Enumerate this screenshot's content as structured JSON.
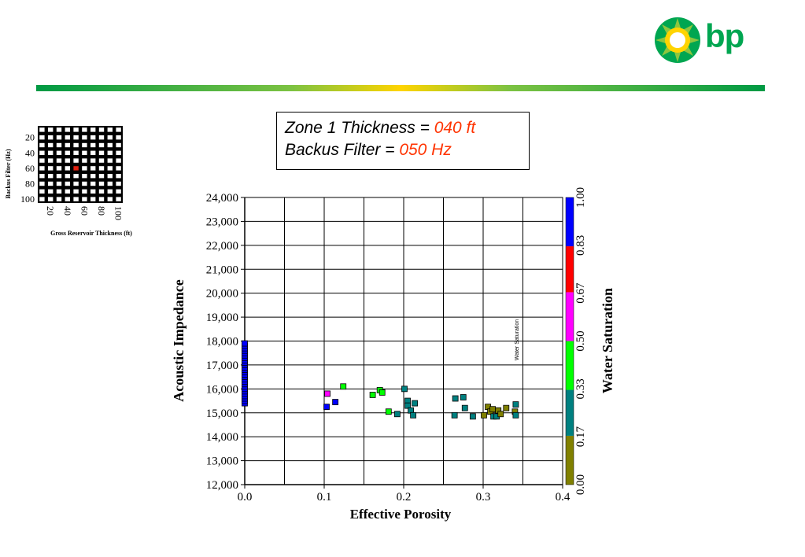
{
  "logo": {
    "text": "bp"
  },
  "colors": {
    "brand_green": "#00a651",
    "brand_yellow": "#ffd400",
    "highlight_red": "#ff3300"
  },
  "title_box": {
    "line1_prefix": "Zone 1 Thickness = ",
    "line1_value": "040 ft",
    "line2_prefix": "Backus Filter = ",
    "line2_value": "050 Hz"
  },
  "selector_grid": {
    "ylabel": "Backus Filter (Hz)",
    "xlabel": "Gross Reservoir Thickness (ft)",
    "row_labels": [
      "20",
      "40",
      "60",
      "80",
      "100"
    ],
    "col_labels": [
      "20",
      "40",
      "60",
      "80",
      "100"
    ],
    "rows": 10,
    "cols": 10,
    "selected": {
      "row": 5,
      "col": 4
    },
    "selected_color": "#e02010"
  },
  "chart_data": {
    "type": "scatter",
    "xlabel": "Effective Porosity",
    "ylabel": "Acoustic Impedance",
    "xlim": [
      0.0,
      0.4
    ],
    "ylim": [
      12000,
      24000
    ],
    "x_ticks": [
      "0.0",
      "0.1",
      "0.2",
      "0.3",
      "0.4"
    ],
    "x_tick_values": [
      0.0,
      0.1,
      0.2,
      0.3,
      0.4
    ],
    "y_ticks": [
      "12,000",
      "13,000",
      "14,000",
      "15,000",
      "16,000",
      "17,000",
      "18,000",
      "19,000",
      "20,000",
      "21,000",
      "22,000",
      "23,000",
      "24,000"
    ],
    "y_tick_values": [
      12000,
      13000,
      14000,
      15000,
      16000,
      17000,
      18000,
      19000,
      20000,
      21000,
      22000,
      23000,
      24000
    ],
    "x_gridlines": [
      0.05,
      0.1,
      0.15,
      0.2,
      0.25,
      0.3,
      0.35,
      0.4
    ],
    "y_gridlines": [
      13000,
      14000,
      15000,
      16000,
      17000,
      18000,
      19000,
      20000,
      21000,
      22000,
      23000,
      24000
    ],
    "annotation": "Water Saturation",
    "colorbar": {
      "label": "Water Saturation",
      "tick_labels": [
        "0.00",
        "0.17",
        "0.33",
        "0.50",
        "0.67",
        "0.83",
        "1.00"
      ],
      "bands": [
        {
          "from": 0.0,
          "to": 0.17,
          "color": "#808000"
        },
        {
          "from": 0.17,
          "to": 0.33,
          "color": "#008080"
        },
        {
          "from": 0.33,
          "to": 0.5,
          "color": "#00ff00"
        },
        {
          "from": 0.5,
          "to": 0.67,
          "color": "#ff00ff"
        },
        {
          "from": 0.67,
          "to": 0.83,
          "color": "#ff0000"
        },
        {
          "from": 0.83,
          "to": 1.0,
          "color": "#0000ff"
        }
      ]
    },
    "column_points": {
      "x": 0.0,
      "y_from": 15400,
      "y_to": 17900,
      "count": 26,
      "color": "#0000ff"
    },
    "points": [
      {
        "x": 0.103,
        "y": 15250,
        "color": "#0000ff"
      },
      {
        "x": 0.114,
        "y": 15450,
        "color": "#0000ff"
      },
      {
        "x": 0.104,
        "y": 15800,
        "color": "#ff00ff"
      },
      {
        "x": 0.124,
        "y": 16100,
        "color": "#00ff00"
      },
      {
        "x": 0.161,
        "y": 15750,
        "color": "#00ff00"
      },
      {
        "x": 0.17,
        "y": 15950,
        "color": "#00ff00"
      },
      {
        "x": 0.173,
        "y": 15850,
        "color": "#00ff00"
      },
      {
        "x": 0.181,
        "y": 15050,
        "color": "#00ff00"
      },
      {
        "x": 0.192,
        "y": 14950,
        "color": "#008080"
      },
      {
        "x": 0.201,
        "y": 16000,
        "color": "#008080"
      },
      {
        "x": 0.205,
        "y": 15500,
        "color": "#008080"
      },
      {
        "x": 0.205,
        "y": 15300,
        "color": "#008080"
      },
      {
        "x": 0.209,
        "y": 15100,
        "color": "#008080"
      },
      {
        "x": 0.212,
        "y": 14900,
        "color": "#008080"
      },
      {
        "x": 0.214,
        "y": 15400,
        "color": "#008080"
      },
      {
        "x": 0.265,
        "y": 15600,
        "color": "#008080"
      },
      {
        "x": 0.264,
        "y": 14900,
        "color": "#008080"
      },
      {
        "x": 0.275,
        "y": 15650,
        "color": "#008080"
      },
      {
        "x": 0.277,
        "y": 15200,
        "color": "#008080"
      },
      {
        "x": 0.287,
        "y": 14850,
        "color": "#008080"
      },
      {
        "x": 0.301,
        "y": 14900,
        "color": "#808000"
      },
      {
        "x": 0.306,
        "y": 15250,
        "color": "#808000"
      },
      {
        "x": 0.309,
        "y": 15050,
        "color": "#808000"
      },
      {
        "x": 0.312,
        "y": 15150,
        "color": "#808000"
      },
      {
        "x": 0.313,
        "y": 14850,
        "color": "#008080"
      },
      {
        "x": 0.317,
        "y": 14850,
        "color": "#008080"
      },
      {
        "x": 0.319,
        "y": 15100,
        "color": "#808000"
      },
      {
        "x": 0.322,
        "y": 14950,
        "color": "#808000"
      },
      {
        "x": 0.329,
        "y": 15200,
        "color": "#808000"
      },
      {
        "x": 0.341,
        "y": 15350,
        "color": "#008080"
      },
      {
        "x": 0.34,
        "y": 15050,
        "color": "#808000"
      },
      {
        "x": 0.341,
        "y": 14900,
        "color": "#008080"
      }
    ]
  }
}
